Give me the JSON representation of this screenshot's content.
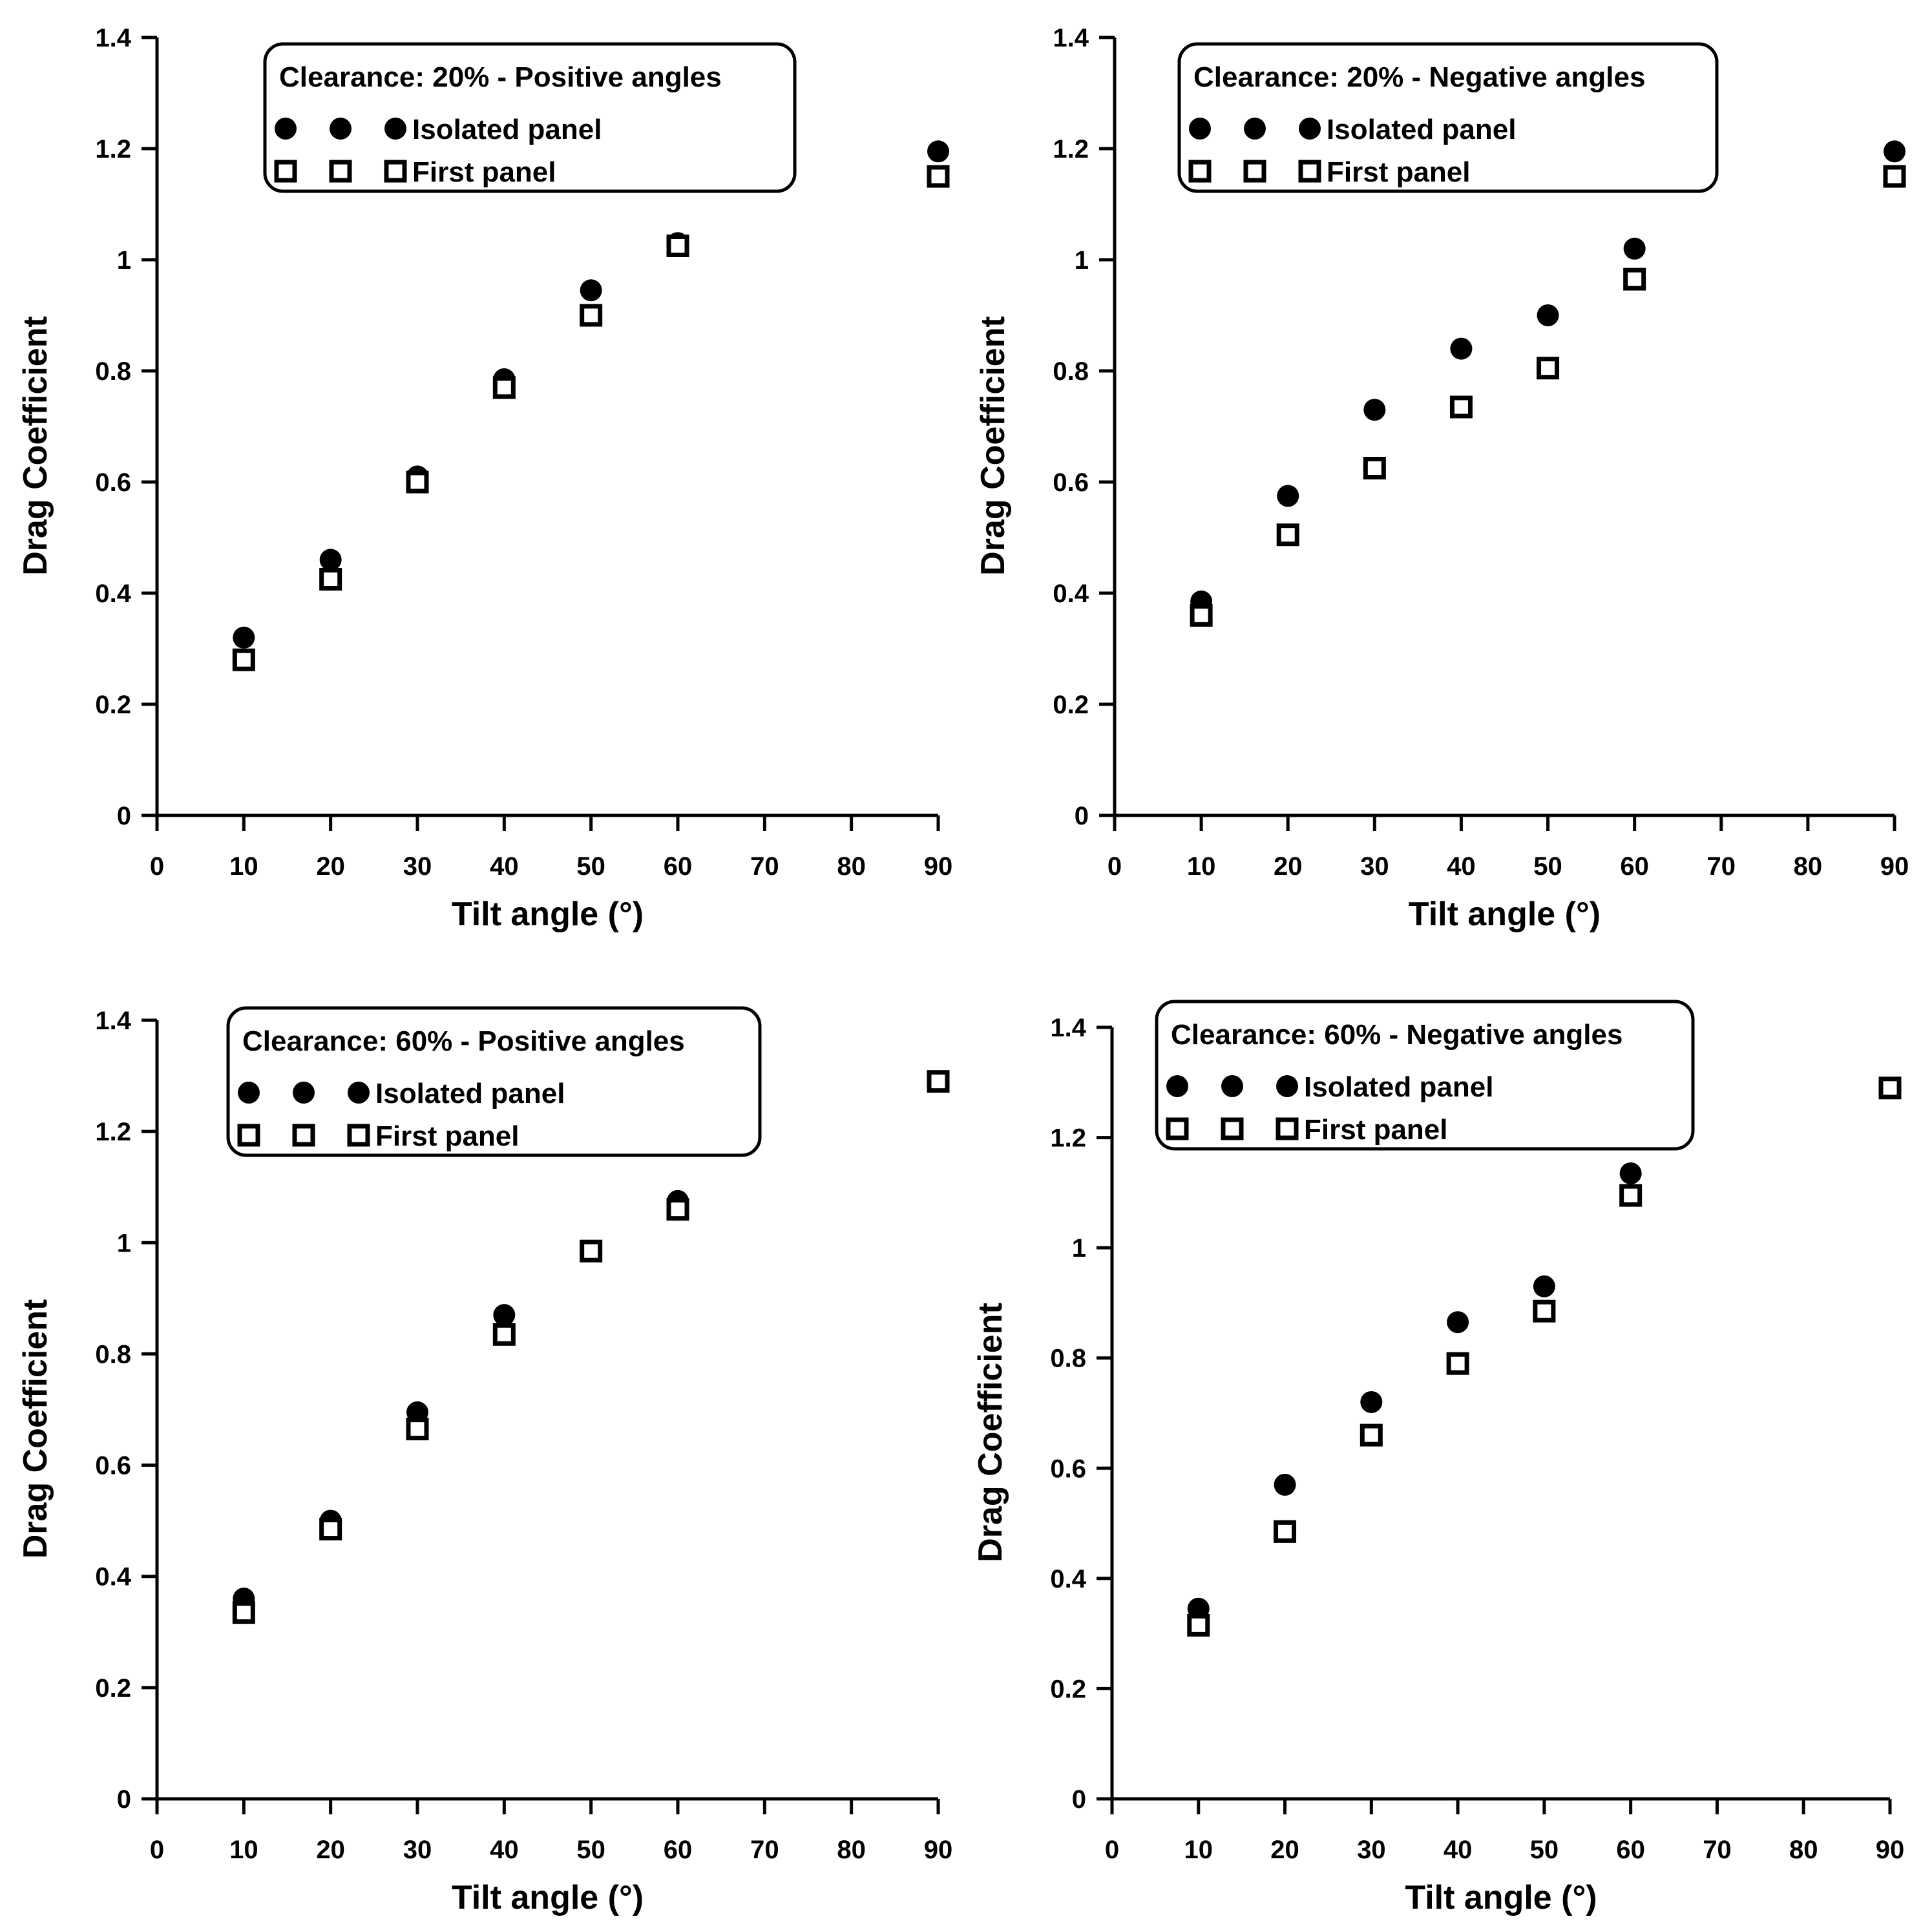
{
  "colors": {
    "ink": "#000000",
    "background": "#ffffff"
  },
  "chart_data": [
    {
      "type": "scatter",
      "title": "Clearance: 20% - Positive angles",
      "xlabel": "Tilt angle (°)",
      "ylabel": "Drag Coefficient",
      "xlim": [
        0,
        90
      ],
      "ylim": [
        0,
        1.4
      ],
      "xticks": [
        0,
        10,
        20,
        30,
        40,
        50,
        60,
        70,
        80,
        90
      ],
      "yticks": [
        0,
        0.2,
        0.4,
        0.6,
        0.8,
        1,
        1.2,
        1.4
      ],
      "legend_position": "top-center",
      "series": [
        {
          "name": "Isolated panel",
          "marker": "filled-circle",
          "x": [
            10,
            20,
            30,
            40,
            50,
            60,
            90
          ],
          "y": [
            0.32,
            0.46,
            0.61,
            0.785,
            0.945,
            1.03,
            1.195
          ]
        },
        {
          "name": "First panel",
          "marker": "open-square",
          "x": [
            10,
            20,
            30,
            40,
            50,
            60,
            90
          ],
          "y": [
            0.28,
            0.425,
            0.6,
            0.77,
            0.9,
            1.025,
            1.15
          ]
        }
      ]
    },
    {
      "type": "scatter",
      "title": "Clearance: 20% - Negative angles",
      "xlabel": "Tilt angle (°)",
      "ylabel": "Drag Coefficient",
      "xlim": [
        0,
        90
      ],
      "ylim": [
        0,
        1.4
      ],
      "xticks": [
        0,
        10,
        20,
        30,
        40,
        50,
        60,
        70,
        80,
        90
      ],
      "yticks": [
        0,
        0.2,
        0.4,
        0.6,
        0.8,
        1,
        1.2,
        1.4
      ],
      "legend_position": "top-center",
      "series": [
        {
          "name": "Isolated panel",
          "marker": "filled-circle",
          "x": [
            10,
            20,
            30,
            40,
            50,
            60,
            90
          ],
          "y": [
            0.385,
            0.575,
            0.73,
            0.84,
            0.9,
            1.02,
            1.195
          ]
        },
        {
          "name": "First panel",
          "marker": "open-square",
          "x": [
            10,
            20,
            30,
            40,
            50,
            60,
            90
          ],
          "y": [
            0.36,
            0.505,
            0.625,
            0.735,
            0.805,
            0.965,
            1.15
          ]
        }
      ]
    },
    {
      "type": "scatter",
      "title": "Clearance: 60% - Positive angles",
      "xlabel": "Tilt angle (°)",
      "ylabel": "Drag Coefficient",
      "xlim": [
        0,
        90
      ],
      "ylim": [
        0,
        1.4
      ],
      "xticks": [
        0,
        10,
        20,
        30,
        40,
        50,
        60,
        70,
        80,
        90
      ],
      "yticks": [
        0,
        0.2,
        0.4,
        0.6,
        0.8,
        1,
        1.2,
        1.4
      ],
      "legend_position": "top-center",
      "series": [
        {
          "name": "Isolated panel",
          "marker": "filled-circle",
          "x": [
            10,
            20,
            30,
            40,
            50,
            60,
            90
          ],
          "y": [
            0.36,
            0.5,
            0.695,
            0.87,
            0.985,
            1.075,
            1.29
          ]
        },
        {
          "name": "First panel",
          "marker": "open-square",
          "x": [
            10,
            20,
            30,
            40,
            50,
            60,
            90
          ],
          "y": [
            0.335,
            0.485,
            0.665,
            0.835,
            0.985,
            1.06,
            1.29
          ]
        }
      ]
    },
    {
      "type": "scatter",
      "title": "Clearance: 60% - Negative angles",
      "xlabel": "Tilt angle (°)",
      "ylabel": "Drag Coefficient",
      "xlim": [
        0,
        90
      ],
      "ylim": [
        0,
        1.4
      ],
      "xticks": [
        0,
        10,
        20,
        30,
        40,
        50,
        60,
        70,
        80,
        90
      ],
      "yticks": [
        0,
        0.2,
        0.4,
        0.6,
        0.8,
        1,
        1.2,
        1.4
      ],
      "legend_position": "top-center",
      "series": [
        {
          "name": "Isolated panel",
          "marker": "filled-circle",
          "x": [
            10,
            20,
            30,
            40,
            50,
            60,
            90
          ],
          "y": [
            0.345,
            0.57,
            0.72,
            0.865,
            0.93,
            1.135,
            1.29
          ]
        },
        {
          "name": "First panel",
          "marker": "open-square",
          "x": [
            10,
            20,
            30,
            40,
            50,
            60,
            90
          ],
          "y": [
            0.315,
            0.485,
            0.66,
            0.79,
            0.885,
            1.095,
            1.29
          ]
        }
      ]
    }
  ]
}
